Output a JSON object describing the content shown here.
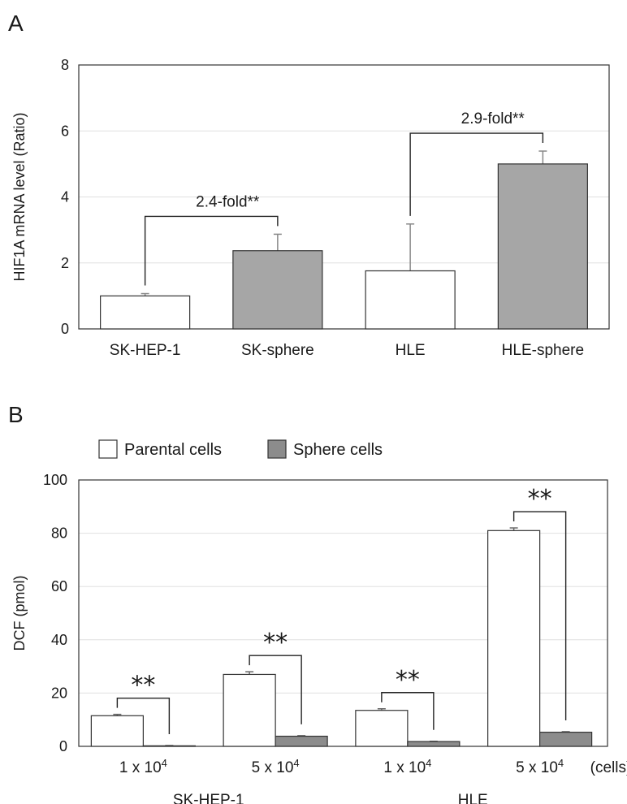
{
  "chart_data": [
    {
      "panel_label": "A",
      "type": "bar",
      "ylabel": "HIF1A mRNA level (Ratio)",
      "ylim": [
        0,
        8
      ],
      "yticks": [
        "0",
        "2",
        "4",
        "6",
        "8"
      ],
      "grid": true,
      "categories": [
        "SK-HEP-1",
        "SK-sphere",
        "HLE",
        "HLE-sphere"
      ],
      "values": [
        1.0,
        2.37,
        1.76,
        5.0
      ],
      "errors": [
        0.07,
        0.5,
        1.42,
        0.39
      ],
      "fills": [
        "#ffffff",
        "#a6a6a6",
        "#ffffff",
        "#a6a6a6"
      ],
      "comparisons": [
        {
          "from": 0,
          "to": 1,
          "label": "2.4-fold**"
        },
        {
          "from": 2,
          "to": 3,
          "label": "2.9-fold**"
        }
      ]
    },
    {
      "panel_label": "B",
      "type": "bar",
      "ylabel": "DCF (pmol)",
      "ylim": [
        0,
        100
      ],
      "yticks": [
        "0",
        "20",
        "40",
        "60",
        "80",
        "100"
      ],
      "grid": true,
      "legend_position": "top-left",
      "x_unit": "(cells)",
      "categories": [
        {
          "coef": "1 x 10",
          "exp": "4"
        },
        {
          "coef": "5 x 10",
          "exp": "4"
        },
        {
          "coef": "1 x 10",
          "exp": "4"
        },
        {
          "coef": "5 x 10",
          "exp": "4"
        }
      ],
      "groups": [
        {
          "label": "SK-HEP-1",
          "categories": [
            0,
            1
          ]
        },
        {
          "label": "HLE",
          "categories": [
            2,
            3
          ]
        }
      ],
      "series": [
        {
          "name": "Parental cells",
          "color": "#ffffff",
          "values": [
            11.5,
            27,
            13.5,
            81
          ],
          "errors": [
            0.5,
            1.0,
            0.6,
            1.0
          ]
        },
        {
          "name": "Sphere cells",
          "color": "#8c8c8c",
          "values": [
            0.2,
            3.8,
            1.8,
            5.3
          ],
          "errors": [
            0.1,
            0.2,
            0.1,
            0.2
          ]
        }
      ],
      "comparisons": [
        {
          "category": 0,
          "label": "**"
        },
        {
          "category": 1,
          "label": "**"
        },
        {
          "category": 2,
          "label": "**"
        },
        {
          "category": 3,
          "label": "**"
        }
      ]
    }
  ]
}
